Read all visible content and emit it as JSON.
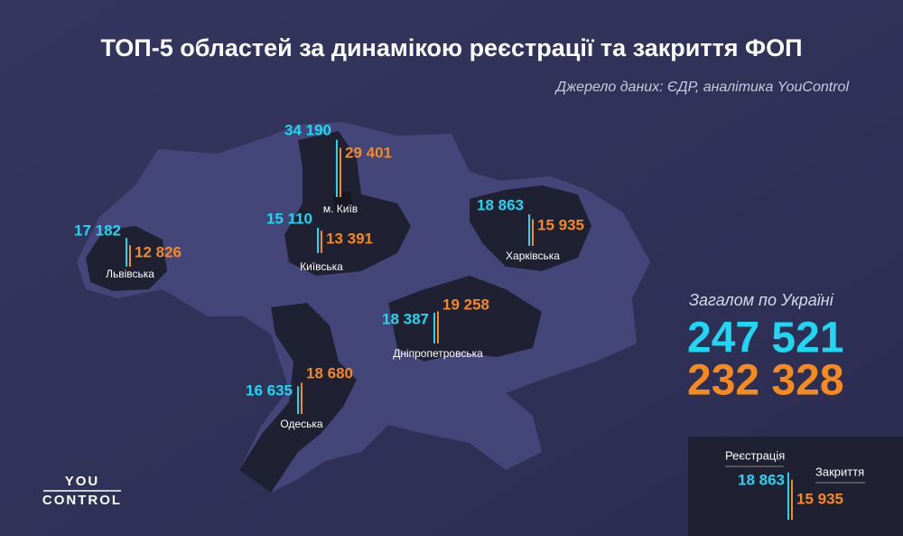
{
  "header": {
    "title": "ТОП-5 областей за динамікою реєстрації та закриття ФОП",
    "source": "Джерело даних: ЄДР, аналітика YouControl"
  },
  "regions": [
    {
      "name": "м. Київ",
      "registered": {
        "value": 34190,
        "label": "34 190"
      },
      "closed": {
        "value": 29401,
        "label": "29 401"
      }
    },
    {
      "name": "Київська",
      "registered": {
        "value": 15110,
        "label": "15 110"
      },
      "closed": {
        "value": 13391,
        "label": "13 391"
      }
    },
    {
      "name": "Львівська",
      "registered": {
        "value": 17182,
        "label": "17 182"
      },
      "closed": {
        "value": 12826,
        "label": "12 826"
      }
    },
    {
      "name": "Харківська",
      "registered": {
        "value": 18863,
        "label": "18 863"
      },
      "closed": {
        "value": 15935,
        "label": "15 935"
      }
    },
    {
      "name": "Дніпропетровська",
      "registered": {
        "value": 18387,
        "label": "18 387"
      },
      "closed": {
        "value": 19258,
        "label": "19 258"
      }
    },
    {
      "name": "Одеська",
      "registered": {
        "value": 16635,
        "label": "16 635"
      },
      "closed": {
        "value": 18680,
        "label": "18 680"
      }
    }
  ],
  "totals": {
    "caption": "Загалом по Україні",
    "registered": "247 521",
    "closed": "232 328"
  },
  "legend": {
    "registered_title": "Реєстрація",
    "closed_title": "Закриття",
    "registered": {
      "value": 18863,
      "label": "18 863"
    },
    "closed": {
      "value": 15935,
      "label": "15 935"
    }
  },
  "logo": {
    "top": "YOU",
    "bottom": "CONTROL"
  }
}
